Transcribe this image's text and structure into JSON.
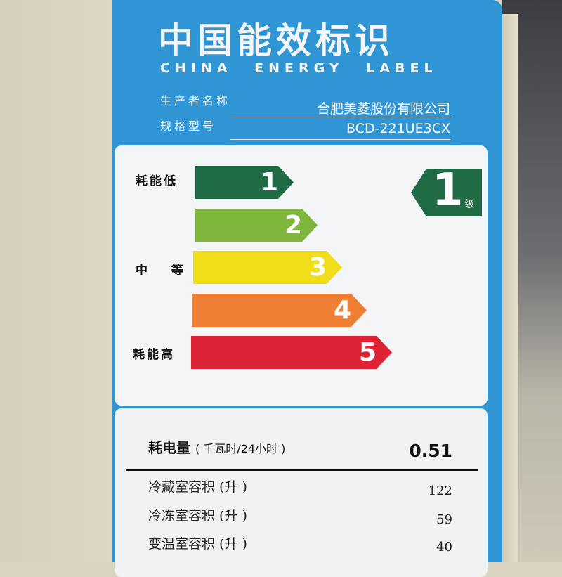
{
  "header": {
    "title": "中国能效标识",
    "subtitle": "CHINA ENERGY LABEL"
  },
  "info": [
    {
      "label": "生产者名称",
      "value": "合肥美菱股份有限公司"
    },
    {
      "label": "规格型号",
      "value": "BCD-221UE3CX"
    }
  ],
  "scale": {
    "low": "耗能低",
    "mid": "中 等",
    "high": "耗能高",
    "grades": [
      {
        "n": "1",
        "color": "#1f6b45"
      },
      {
        "n": "2",
        "color": "#7db63a"
      },
      {
        "n": "3",
        "color": "#f0de1b"
      },
      {
        "n": "4",
        "color": "#ee7e32"
      },
      {
        "n": "5",
        "color": "#de2434"
      }
    ],
    "current": {
      "grade": "1",
      "unit": "级"
    }
  },
  "consumption": {
    "label": "耗电量",
    "unit": "( 千瓦时/24小时 )",
    "value": "0.51"
  },
  "volumes": [
    {
      "label": "冷藏室容积 (升 )",
      "value": "122"
    },
    {
      "label": "冷冻室容积 (升 )",
      "value": "59"
    },
    {
      "label": "变温室容积 (升 )",
      "value": "40"
    }
  ]
}
